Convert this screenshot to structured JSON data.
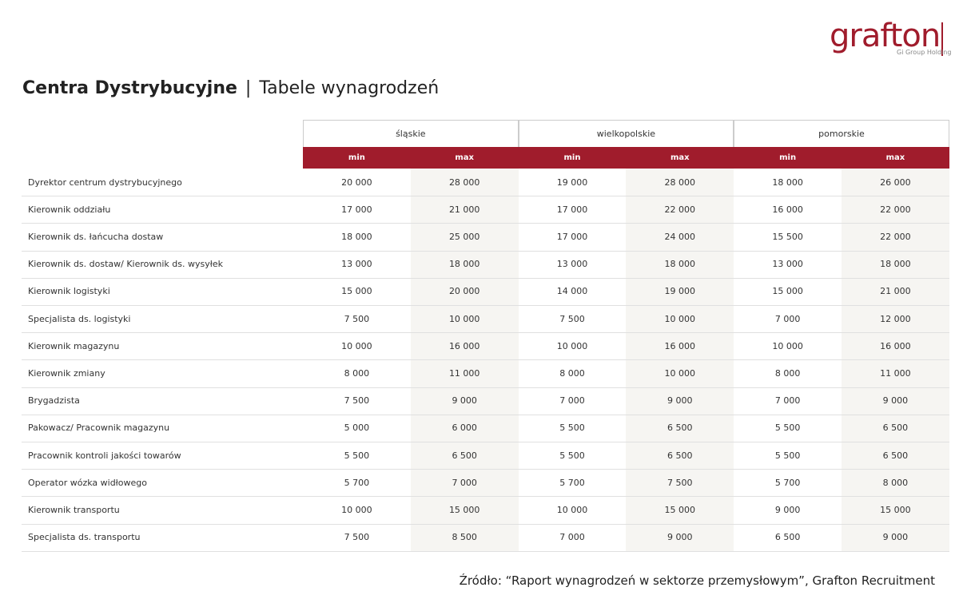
{
  "logo": {
    "name": "grafton",
    "tagline": "Gi Group Holding"
  },
  "header": {
    "title": "Centra Dystrybucyjne",
    "subtitle": "Tabele wynagrodzeń"
  },
  "table": {
    "regions": [
      "śląskie",
      "wielkopolskie",
      "pomorskie"
    ],
    "subheaders": [
      "min",
      "max",
      "min",
      "max",
      "min",
      "max"
    ],
    "rows": [
      {
        "label": "Dyrektor centrum dystrybucyjnego",
        "values": [
          "20 000",
          "28 000",
          "19 000",
          "28 000",
          "18 000",
          "26 000"
        ]
      },
      {
        "label": "Kierownik oddziału",
        "values": [
          "17 000",
          "21 000",
          "17 000",
          "22 000",
          "16 000",
          "22 000"
        ]
      },
      {
        "label": "Kierownik ds. łańcucha dostaw",
        "values": [
          "18 000",
          "25 000",
          "17 000",
          "24 000",
          "15 500",
          "22 000"
        ]
      },
      {
        "label": "Kierownik ds. dostaw/ Kierownik ds. wysyłek",
        "values": [
          "13 000",
          "18 000",
          "13 000",
          "18 000",
          "13 000",
          "18 000"
        ]
      },
      {
        "label": "Kierownik logistyki",
        "values": [
          "15 000",
          "20 000",
          "14 000",
          "19 000",
          "15 000",
          "21 000"
        ]
      },
      {
        "label": "Specjalista ds. logistyki",
        "values": [
          "7 500",
          "10 000",
          "7 500",
          "10 000",
          "7 000",
          "12 000"
        ]
      },
      {
        "label": "Kierownik magazynu",
        "values": [
          "10 000",
          "16 000",
          "10 000",
          "16 000",
          "10 000",
          "16 000"
        ]
      },
      {
        "label": "Kierownik zmiany",
        "values": [
          "8 000",
          "11 000",
          "8 000",
          "10 000",
          "8 000",
          "11 000"
        ]
      },
      {
        "label": "Brygadzista",
        "values": [
          "7 500",
          "9 000",
          "7 000",
          "9 000",
          "7 000",
          "9 000"
        ]
      },
      {
        "label": "Pakowacz/ Pracownik magazynu",
        "values": [
          "5 000",
          "6 000",
          "5 500",
          "6 500",
          "5 500",
          "6 500"
        ]
      },
      {
        "label": "Pracownik kontroli jakości towarów",
        "values": [
          "5 500",
          "6 500",
          "5 500",
          "6 500",
          "5 500",
          "6 500"
        ]
      },
      {
        "label": "Operator wózka widłowego",
        "values": [
          "5 700",
          "7 000",
          "5 700",
          "7 500",
          "5 700",
          "8 000"
        ]
      },
      {
        "label": "Kierownik transportu",
        "values": [
          "10 000",
          "15 000",
          "10 000",
          "15 000",
          "9 000",
          "15 000"
        ]
      },
      {
        "label": "Specjalista ds. transportu",
        "values": [
          "7 500",
          "8 500",
          "7 000",
          "9 000",
          "6 500",
          "9 000"
        ]
      }
    ]
  },
  "footer": {
    "source": "Źródło: “Raport wynagrodzeń w sektorze przemysłowym”, Grafton Recruitment"
  }
}
